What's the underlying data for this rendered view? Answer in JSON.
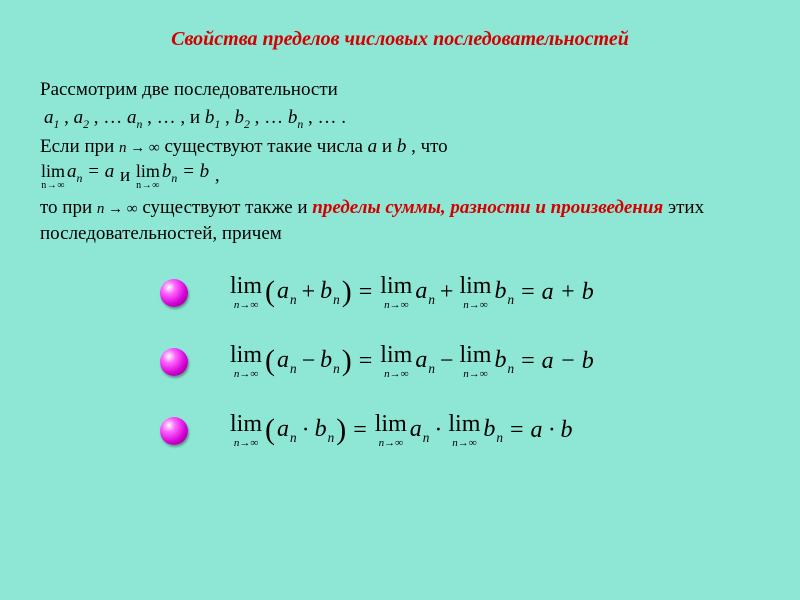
{
  "colors": {
    "background": "#8ee6d5",
    "title": "#d40000",
    "emphasis": "#d40000",
    "text": "#000000",
    "sphere_highlight": "#ffffff",
    "sphere_mid": "#ff66ff",
    "sphere_dark": "#d400d4",
    "sphere_edge": "#700070"
  },
  "fonts": {
    "body_family": "Times New Roman",
    "body_size_pt": 19,
    "title_size_pt": 20,
    "formula_size_pt": 24
  },
  "title": "Свойства пределов числовых последовательностей",
  "intro": "Рассмотрим две последовательности",
  "seq_line_prefix": " ",
  "seq_a1": "a",
  "seq_a1_sub": "1",
  "seq_a2": "a",
  "seq_a2_sub": "2",
  "seq_an": "a",
  "seq_an_sub": "n",
  "sep": " ,   ",
  "dots": " , … ",
  "and_word": "и",
  "seq_b1": "b",
  "seq_b1_sub": "1",
  "seq_b2": "b",
  "seq_b2_sub": "2",
  "seq_bn": "b",
  "seq_bn_sub": "n",
  "tail": " , … . ",
  "line3_a": "Если при   ",
  "n_to_inf": "n → ∞",
  "line3_b": "     существуют такие числа   ",
  "var_a": "a",
  "line3_c": "   и   ",
  "var_b": "b",
  "line3_d": " ,   что",
  "lim_word": "lim",
  "lim_sub": "n→∞",
  "lim_an_a": "a",
  "lim_an_sub": "n",
  "eq_a": " = a",
  "mid_and": "    и    ",
  "lim_bn_b": "b",
  "lim_bn_sub": "n",
  "eq_b": " = b",
  "comma": "       ,",
  "line5_a": "то при        ",
  "line5_b": "       существуют также и ",
  "emph1": "пределы   суммы, разности и произведения",
  "line5_c": " этих последовательностей,   причем",
  "f": {
    "a": "a",
    "b": "b",
    "n": "n",
    "plus": "+",
    "minus": "−",
    "dot": "·",
    "eq": "=",
    "res_sum": "a + b",
    "res_diff": "a − b",
    "res_prod": "a · b"
  }
}
